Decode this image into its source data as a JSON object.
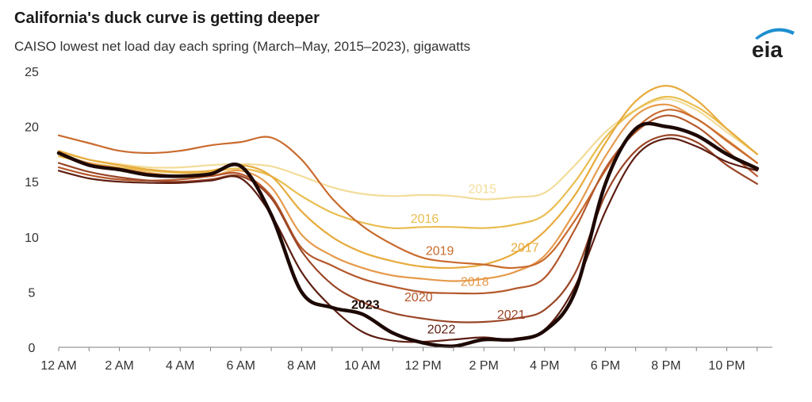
{
  "header": {
    "title": "California's duck curve is getting deeper",
    "subtitle": "CAISO lowest net load day each spring (March–May, 2015–2023), gigawatts",
    "logo_text": "eia"
  },
  "chart_data": {
    "type": "line",
    "title": "California's duck curve is getting deeper",
    "subtitle": "CAISO lowest net load day each spring (March–May, 2015–2023), gigawatts",
    "xlabel": "",
    "ylabel": "",
    "x_hours": [
      0,
      1,
      2,
      3,
      4,
      5,
      6,
      7,
      8,
      9,
      10,
      11,
      12,
      13,
      14,
      15,
      16,
      17,
      18,
      19,
      20,
      21,
      22,
      23
    ],
    "xlim": [
      0,
      23.5
    ],
    "ylim": [
      0,
      25
    ],
    "x_tick_labels": [
      "12 AM",
      "2 AM",
      "4 AM",
      "6 AM",
      "8 AM",
      "10 AM",
      "12 PM",
      "2 PM",
      "4 PM",
      "6 PM",
      "8 PM",
      "10 PM"
    ],
    "x_tick_hours": [
      0,
      2,
      4,
      6,
      8,
      10,
      12,
      14,
      16,
      18,
      20,
      22
    ],
    "y_ticks": [
      0,
      5,
      10,
      15,
      20,
      25
    ],
    "grid": false,
    "series": [
      {
        "name": "2015",
        "color": "#f3dc99",
        "label_x": 13.95,
        "label_y": 14.4,
        "values": [
          17.6,
          17.0,
          16.6,
          16.3,
          16.3,
          16.5,
          16.6,
          16.4,
          15.5,
          14.5,
          13.9,
          13.7,
          13.8,
          13.7,
          13.4,
          13.6,
          14.0,
          16.5,
          19.5,
          21.5,
          22.5,
          21.5,
          19.5,
          17.5
        ]
      },
      {
        "name": "2016",
        "color": "#e9bd4f",
        "label_x": 12.05,
        "label_y": 11.7,
        "values": [
          17.3,
          16.7,
          16.3,
          16.0,
          15.8,
          15.9,
          16.2,
          15.5,
          13.7,
          12.2,
          11.3,
          10.8,
          10.9,
          10.9,
          10.8,
          11.1,
          12.0,
          15.0,
          19.0,
          21.5,
          22.7,
          21.8,
          19.8,
          17.5
        ]
      },
      {
        "name": "2017",
        "color": "#e7ab3d",
        "label_x": 15.35,
        "label_y": 9.1,
        "values": [
          17.8,
          17.0,
          16.5,
          16.1,
          15.9,
          16.0,
          16.5,
          15.5,
          12.3,
          10.0,
          8.6,
          7.8,
          7.3,
          7.2,
          7.5,
          8.5,
          10.5,
          13.8,
          18.5,
          22.3,
          23.7,
          22.4,
          19.8,
          17.5
        ]
      },
      {
        "name": "2018",
        "color": "#e69a4c",
        "label_x": 13.7,
        "label_y": 6.0,
        "values": [
          17.5,
          16.7,
          16.2,
          15.8,
          15.5,
          15.5,
          16.0,
          14.5,
          10.2,
          8.3,
          7.2,
          6.5,
          6.2,
          6.0,
          6.2,
          6.8,
          8.3,
          12.3,
          17.3,
          21.0,
          22.0,
          20.7,
          18.8,
          16.7
        ]
      },
      {
        "name": "2019",
        "color": "#c96b2e",
        "label_x": 12.55,
        "label_y": 8.8,
        "values": [
          19.2,
          18.5,
          17.8,
          17.6,
          17.8,
          18.3,
          18.6,
          19.0,
          17.0,
          13.5,
          11.0,
          9.3,
          8.1,
          7.7,
          7.5,
          7.2,
          8.0,
          11.5,
          16.0,
          19.8,
          21.5,
          20.7,
          18.7,
          16.7
        ]
      },
      {
        "name": "2020",
        "color": "#b5582c",
        "label_x": 11.85,
        "label_y": 4.6,
        "values": [
          16.3,
          15.6,
          15.2,
          15.1,
          15.2,
          15.5,
          15.7,
          13.7,
          9.0,
          7.4,
          6.2,
          5.5,
          5.0,
          4.9,
          4.9,
          5.3,
          6.3,
          10.7,
          16.2,
          19.5,
          21.0,
          20.0,
          17.8,
          15.5
        ]
      },
      {
        "name": "2021",
        "color": "#9a4526",
        "label_x": 14.9,
        "label_y": 3.0,
        "values": [
          16.7,
          15.9,
          15.4,
          15.1,
          15.0,
          15.2,
          15.5,
          13.5,
          8.7,
          5.7,
          4.1,
          3.1,
          2.6,
          2.3,
          2.3,
          2.6,
          3.4,
          6.7,
          13.8,
          17.8,
          19.2,
          18.6,
          16.5,
          14.8
        ]
      },
      {
        "name": "2022",
        "color": "#5e1e12",
        "label_x": 12.6,
        "label_y": 1.7,
        "values": [
          16.0,
          15.3,
          15.0,
          14.9,
          14.9,
          15.1,
          15.3,
          12.0,
          6.8,
          3.6,
          1.4,
          0.6,
          0.5,
          0.7,
          0.9,
          0.7,
          1.6,
          5.5,
          12.3,
          17.3,
          18.9,
          18.2,
          16.8,
          16.0
        ]
      },
      {
        "name": "2023",
        "color": "#1d0804",
        "label_x": 10.1,
        "label_y": 3.9,
        "values": [
          17.6,
          16.5,
          16.1,
          15.6,
          15.5,
          15.7,
          16.4,
          12.0,
          5.0,
          3.6,
          3.0,
          1.3,
          0.4,
          0.1,
          0.7,
          0.7,
          1.5,
          5.0,
          14.8,
          19.8,
          20.0,
          19.2,
          17.5,
          16.2
        ]
      }
    ]
  }
}
